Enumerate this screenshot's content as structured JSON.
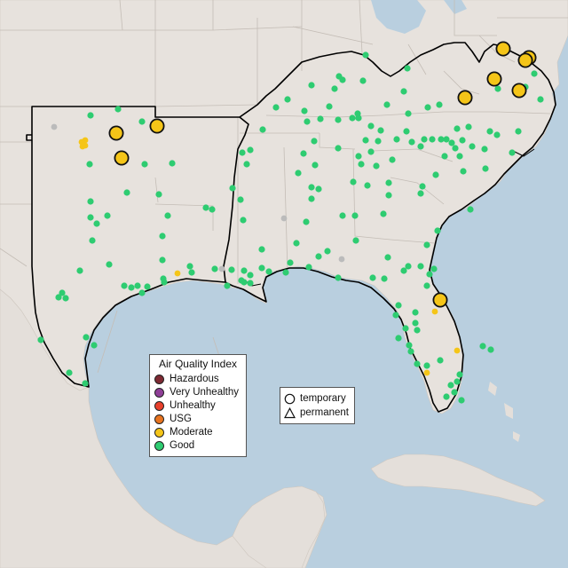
{
  "legend": {
    "title": "Air Quality Index",
    "categories": [
      {
        "label": "Hazardous",
        "color": "#7e2a33"
      },
      {
        "label": "Very Unhealthy",
        "color": "#8f3f97"
      },
      {
        "label": "Unhealthy",
        "color": "#e8402c"
      },
      {
        "label": "USG",
        "color": "#e8741f"
      },
      {
        "label": "Moderate",
        "color": "#f5c518"
      },
      {
        "label": "Good",
        "color": "#2ecc71"
      }
    ]
  },
  "type_legend": {
    "temporary": "temporary",
    "permanent": "permanent"
  },
  "colors": {
    "water": "#b9cfdf",
    "land": "#e7e2dd",
    "land_outside": "#ddd8d2",
    "state_border": "#c4bdb6",
    "region_outline": "#000000",
    "no_data": "#bbbbbb"
  }
}
